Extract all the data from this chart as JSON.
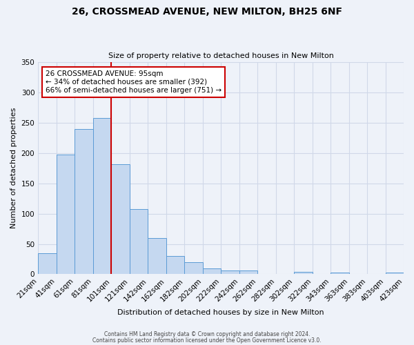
{
  "title": "26, CROSSMEAD AVENUE, NEW MILTON, BH25 6NF",
  "subtitle": "Size of property relative to detached houses in New Milton",
  "bar_heights": [
    35,
    198,
    240,
    258,
    182,
    108,
    60,
    30,
    20,
    10,
    6,
    6,
    0,
    0,
    4,
    0,
    3,
    0,
    0,
    3
  ],
  "x_tick_labels": [
    "21sqm",
    "41sqm",
    "61sqm",
    "81sqm",
    "101sqm",
    "121sqm",
    "142sqm",
    "162sqm",
    "182sqm",
    "202sqm",
    "222sqm",
    "242sqm",
    "262sqm",
    "282sqm",
    "302sqm",
    "322sqm",
    "343sqm",
    "363sqm",
    "383sqm",
    "403sqm",
    "423sqm"
  ],
  "bar_color": "#c5d8f0",
  "bar_edge_color": "#5b9bd5",
  "vline_x": 4,
  "vline_color": "#cc0000",
  "ylabel": "Number of detached properties",
  "xlabel": "Distribution of detached houses by size in New Milton",
  "ylim": [
    0,
    350
  ],
  "yticks": [
    0,
    50,
    100,
    150,
    200,
    250,
    300,
    350
  ],
  "annotation_title": "26 CROSSMEAD AVENUE: 95sqm",
  "annotation_line1": "← 34% of detached houses are smaller (392)",
  "annotation_line2": "66% of semi-detached houses are larger (751) →",
  "annotation_box_facecolor": "#ffffff",
  "annotation_box_edgecolor": "#cc0000",
  "footer1": "Contains HM Land Registry data © Crown copyright and database right 2024.",
  "footer2": "Contains public sector information licensed under the Open Government Licence v3.0.",
  "background_color": "#eef2f9",
  "grid_color": "#d0d8e8"
}
